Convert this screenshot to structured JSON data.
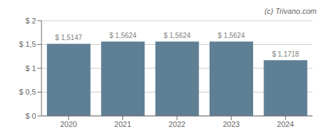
{
  "chart_data": {
    "type": "bar",
    "categories": [
      "2020",
      "2021",
      "2022",
      "2023",
      "2024"
    ],
    "values": [
      1.5147,
      1.5624,
      1.5624,
      1.5624,
      1.1718
    ],
    "value_labels": [
      "$ 1,5147",
      "$ 1,5624",
      "$ 1,5624",
      "$ 1,5624",
      "$ 1,1718"
    ],
    "data_labels": true,
    "color": "#5f7f95",
    "ylim": [
      0,
      2.0
    ],
    "yticks": [
      {
        "value": 0,
        "label": "$ 0"
      },
      {
        "value": 0.5,
        "label": "$ 0,5"
      },
      {
        "value": 1.0,
        "label": "$ 1"
      },
      {
        "value": 1.5,
        "label": "$ 1,5"
      },
      {
        "value": 2.0,
        "label": "$ 2"
      }
    ],
    "grid": true,
    "annotations": [
      "(c) Trivano.com"
    ]
  }
}
